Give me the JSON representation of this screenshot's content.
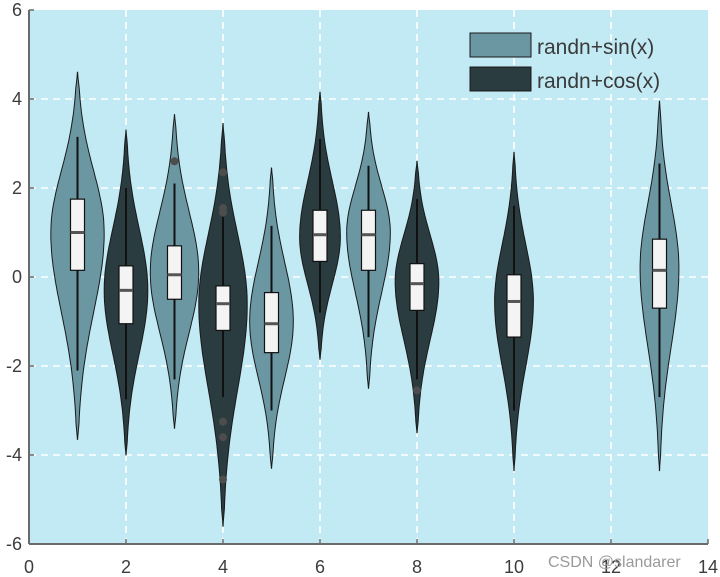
{
  "chart_data": {
    "type": "violin",
    "title": "",
    "xlabel": "",
    "ylabel": "",
    "xlim": [
      0,
      14
    ],
    "ylim": [
      -6,
      6
    ],
    "x_ticks": [
      "0",
      "2",
      "4",
      "6",
      "8",
      "10",
      "12",
      "14"
    ],
    "y_ticks": [
      "-6",
      "-4",
      "-2",
      "0",
      "2",
      "4",
      "6"
    ],
    "grid": true,
    "legend_position": "top-right",
    "background_color": "#c2eaf4",
    "series": [
      {
        "name": "randn+sin(x)",
        "color": "#6b97a3",
        "violins": [
          {
            "x": 1,
            "min": -3.65,
            "max": 4.6,
            "q1": 0.15,
            "median": 1.0,
            "q3": 1.75,
            "whisker_low": -2.1,
            "whisker_high": 3.15,
            "mode": 1.0,
            "max_width": 0.55,
            "outliers": []
          },
          {
            "x": 3,
            "min": -3.4,
            "max": 3.65,
            "q1": -0.5,
            "median": 0.05,
            "q3": 0.7,
            "whisker_low": -2.3,
            "whisker_high": 2.1,
            "mode": 0.1,
            "max_width": 0.5,
            "outliers": [
              2.6
            ]
          },
          {
            "x": 5,
            "min": -4.3,
            "max": 2.45,
            "q1": -1.7,
            "median": -1.05,
            "q3": -0.35,
            "whisker_low": -3.0,
            "whisker_high": 1.15,
            "mode": -1.0,
            "max_width": 0.45,
            "outliers": []
          },
          {
            "x": 7,
            "min": -2.5,
            "max": 3.7,
            "q1": 0.15,
            "median": 0.95,
            "q3": 1.5,
            "whisker_low": -1.35,
            "whisker_high": 2.5,
            "mode": 1.0,
            "max_width": 0.45,
            "outliers": []
          },
          {
            "x": 13,
            "min": -4.35,
            "max": 3.95,
            "q1": -0.7,
            "median": 0.15,
            "q3": 0.85,
            "whisker_low": -2.7,
            "whisker_high": 2.55,
            "mode": 0.2,
            "max_width": 0.4,
            "outliers": []
          }
        ]
      },
      {
        "name": "randn+cos(x)",
        "color": "#2a3c3f",
        "violins": [
          {
            "x": 2,
            "min": -4.0,
            "max": 3.3,
            "q1": -1.05,
            "median": -0.3,
            "q3": 0.25,
            "whisker_low": -2.75,
            "whisker_high": 2.0,
            "mode": -0.3,
            "max_width": 0.45,
            "outliers": []
          },
          {
            "x": 4,
            "min": -5.6,
            "max": 3.45,
            "q1": -1.2,
            "median": -0.6,
            "q3": -0.2,
            "whisker_low": -2.7,
            "whisker_high": 1.35,
            "mode": -0.6,
            "max_width": 0.5,
            "outliers": [
              2.35,
              1.55,
              1.45,
              -3.25,
              -3.6,
              -4.55
            ]
          },
          {
            "x": 6,
            "min": -1.85,
            "max": 4.15,
            "q1": 0.35,
            "median": 0.95,
            "q3": 1.5,
            "whisker_low": -0.8,
            "whisker_high": 3.1,
            "mode": 0.9,
            "max_width": 0.42,
            "outliers": []
          },
          {
            "x": 8,
            "min": -3.5,
            "max": 2.6,
            "q1": -0.75,
            "median": -0.15,
            "q3": 0.3,
            "whisker_low": -2.3,
            "whisker_high": 1.75,
            "mode": -0.1,
            "max_width": 0.45,
            "outliers": [
              -2.55
            ]
          },
          {
            "x": 10,
            "min": -4.35,
            "max": 2.8,
            "q1": -1.35,
            "median": -0.55,
            "q3": 0.05,
            "whisker_low": -3.0,
            "whisker_high": 1.6,
            "mode": -0.55,
            "max_width": 0.4,
            "outliers": []
          }
        ]
      }
    ]
  },
  "watermark": "CSDN @slandarer"
}
